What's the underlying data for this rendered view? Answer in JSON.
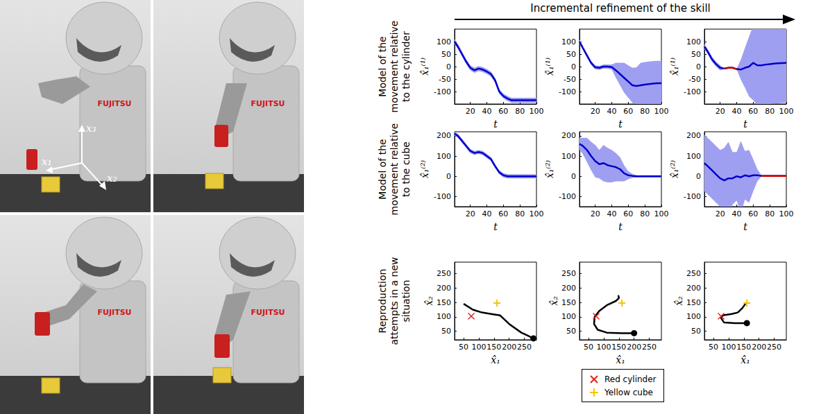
{
  "header": "Incremental refinement of the skill",
  "row_labels": [
    "Model of the movement relative to the cylinder",
    "Model of the movement relative to the cube",
    "Reproduction attempts in a new situation"
  ],
  "photos": {
    "brand": "FUJITSU",
    "axis_labels": [
      "x₁",
      "x₂",
      "x₃"
    ]
  },
  "legend_entries": [
    {
      "label": "Red cylinder",
      "marker": "x",
      "color": "#e0201b"
    },
    {
      "label": "Yellow cube",
      "marker": "plus",
      "color": "#f2c500"
    }
  ],
  "chart_data": [
    {
      "type": "line",
      "xlabel": "t",
      "ylabel": "x̂₁⁽¹⁾",
      "xlim": [
        1,
        100
      ],
      "xticks": [
        20,
        40,
        60,
        80,
        100
      ],
      "ylim": [
        -150,
        150
      ],
      "yticks": [
        -100,
        -50,
        0,
        50,
        100
      ],
      "x": [
        1,
        5,
        10,
        15,
        20,
        25,
        30,
        35,
        40,
        45,
        50,
        55,
        60,
        65,
        70,
        75,
        80,
        85,
        90,
        95,
        100
      ],
      "series": [
        {
          "color": "#0000cd",
          "values": [
            100,
            80,
            50,
            20,
            -5,
            -15,
            -8,
            -12,
            -20,
            -30,
            -55,
            -100,
            -118,
            -128,
            -135,
            -135,
            -135,
            -135,
            -135,
            -135,
            -135
          ],
          "lower": [
            90,
            70,
            40,
            10,
            -15,
            -25,
            -18,
            -22,
            -30,
            -40,
            -65,
            -110,
            -128,
            -138,
            -145,
            -145,
            -145,
            -145,
            -145,
            -145,
            -145
          ],
          "upper": [
            110,
            90,
            60,
            30,
            5,
            -5,
            2,
            -2,
            -10,
            -20,
            -45,
            -90,
            -108,
            -118,
            -125,
            -125,
            -125,
            -125,
            -125,
            -125,
            -125
          ]
        }
      ]
    },
    {
      "type": "line",
      "xlabel": "t",
      "ylabel": "x̂₁⁽¹⁾",
      "xlim": [
        1,
        100
      ],
      "xticks": [
        20,
        40,
        60,
        80,
        100
      ],
      "ylim": [
        -150,
        150
      ],
      "yticks": [
        -100,
        -50,
        0,
        50,
        100
      ],
      "x": [
        1,
        5,
        10,
        15,
        20,
        25,
        30,
        35,
        40,
        45,
        50,
        55,
        60,
        65,
        70,
        75,
        80,
        85,
        90,
        95,
        100
      ],
      "series": [
        {
          "color": "#0000cd",
          "values": [
            100,
            75,
            45,
            15,
            -3,
            -5,
            0,
            0,
            -2,
            -15,
            -30,
            -45,
            -60,
            -75,
            -78,
            -75,
            -72,
            -70,
            -68,
            -67,
            -67
          ],
          "lower": [
            92,
            67,
            37,
            7,
            -11,
            -13,
            -8,
            -8,
            -12,
            -45,
            -75,
            -105,
            -125,
            -145,
            -153,
            -165,
            -162,
            -160,
            -158,
            -157,
            -157
          ],
          "upper": [
            108,
            83,
            53,
            23,
            5,
            3,
            8,
            8,
            8,
            15,
            15,
            15,
            5,
            -5,
            -3,
            15,
            18,
            20,
            22,
            23,
            23
          ]
        }
      ]
    },
    {
      "type": "line",
      "xlabel": "t",
      "ylabel": "x̂₁⁽¹⁾",
      "xlim": [
        1,
        100
      ],
      "xticks": [
        20,
        40,
        60,
        80,
        100
      ],
      "ylim": [
        -150,
        150
      ],
      "yticks": [
        -100,
        -50,
        0,
        50,
        100
      ],
      "x": [
        1,
        5,
        10,
        15,
        20,
        25,
        30,
        35,
        40,
        45,
        50,
        55,
        60,
        65,
        70,
        75,
        80,
        85,
        90,
        95,
        100
      ],
      "series": [
        {
          "color": "#0000cd",
          "values": [
            80,
            60,
            30,
            10,
            -5,
            -8,
            -5,
            -5,
            -10,
            -12,
            -5,
            0,
            15,
            5,
            5,
            8,
            10,
            12,
            13,
            14,
            15
          ],
          "lower": [
            70,
            50,
            20,
            0,
            -15,
            -10,
            -7,
            -7,
            -12,
            -52,
            -85,
            -120,
            -135,
            -155,
            -155,
            -152,
            -150,
            -148,
            -147,
            -146,
            -145
          ],
          "upper": [
            90,
            70,
            40,
            20,
            5,
            -6,
            -3,
            -3,
            -8,
            28,
            75,
            120,
            165,
            165,
            165,
            168,
            170,
            172,
            173,
            174,
            175
          ]
        },
        {
          "color": "#cc0000",
          "values": [
            null,
            null,
            null,
            null,
            null,
            -8,
            -5,
            -5,
            -10,
            null,
            null,
            null,
            null,
            null,
            null,
            null,
            null,
            null,
            null,
            null,
            null
          ]
        }
      ]
    },
    {
      "type": "line",
      "xlabel": "t",
      "ylabel": "x̂₁⁽²⁾",
      "xlim": [
        1,
        100
      ],
      "xticks": [
        20,
        40,
        60,
        80,
        100
      ],
      "ylim": [
        -150,
        220
      ],
      "yticks": [
        -100,
        0,
        100,
        200
      ],
      "x": [
        1,
        5,
        10,
        15,
        20,
        25,
        30,
        35,
        40,
        45,
        50,
        55,
        60,
        65,
        70,
        75,
        80,
        85,
        90,
        95,
        100
      ],
      "series": [
        {
          "color": "#0000cd",
          "values": [
            210,
            200,
            175,
            150,
            125,
            115,
            120,
            115,
            100,
            85,
            50,
            20,
            5,
            0,
            0,
            0,
            0,
            0,
            0,
            0,
            0
          ],
          "lower": [
            200,
            190,
            165,
            140,
            115,
            105,
            110,
            105,
            90,
            75,
            40,
            10,
            -5,
            -10,
            -10,
            -10,
            -10,
            -10,
            -10,
            -10,
            -10
          ],
          "upper": [
            220,
            210,
            185,
            160,
            135,
            125,
            130,
            125,
            110,
            95,
            60,
            30,
            15,
            10,
            10,
            10,
            10,
            10,
            10,
            10,
            10
          ]
        }
      ]
    },
    {
      "type": "line",
      "xlabel": "t",
      "ylabel": "x̂₁⁽²⁾",
      "xlim": [
        1,
        100
      ],
      "xticks": [
        20,
        40,
        60,
        80,
        100
      ],
      "ylim": [
        -150,
        220
      ],
      "yticks": [
        -100,
        0,
        100,
        200
      ],
      "x": [
        1,
        5,
        10,
        15,
        20,
        25,
        30,
        35,
        40,
        45,
        50,
        55,
        60,
        65,
        70,
        75,
        80,
        85,
        90,
        95,
        100
      ],
      "series": [
        {
          "color": "#0000cd",
          "values": [
            160,
            150,
            130,
            100,
            75,
            60,
            65,
            55,
            50,
            45,
            35,
            15,
            5,
            2,
            0,
            0,
            0,
            0,
            0,
            0,
            0
          ],
          "lower": [
            130,
            110,
            70,
            30,
            -5,
            -10,
            -25,
            -30,
            -30,
            -25,
            -25,
            -25,
            -15,
            -8,
            -5,
            -5,
            -5,
            -5,
            -5,
            -5,
            -5
          ],
          "upper": [
            190,
            190,
            190,
            170,
            155,
            130,
            155,
            140,
            130,
            115,
            95,
            55,
            25,
            12,
            5,
            5,
            5,
            5,
            5,
            5,
            5
          ]
        }
      ]
    },
    {
      "type": "line",
      "xlabel": "t",
      "ylabel": "x̂₁⁽²⁾",
      "xlim": [
        1,
        100
      ],
      "xticks": [
        20,
        40,
        60,
        80,
        100
      ],
      "ylim": [
        -150,
        220
      ],
      "yticks": [
        -100,
        0,
        100,
        200
      ],
      "x": [
        1,
        5,
        10,
        15,
        20,
        25,
        30,
        35,
        40,
        45,
        50,
        55,
        60,
        65,
        70,
        75,
        80,
        85,
        90,
        95,
        100
      ],
      "series": [
        {
          "color": "#0000cd",
          "values": [
            65,
            50,
            30,
            10,
            -10,
            -20,
            -10,
            -10,
            0,
            -5,
            5,
            0,
            5,
            5,
            2,
            2,
            2,
            2,
            2,
            2,
            2
          ],
          "lower": [
            -75,
            -90,
            -110,
            -130,
            -150,
            -160,
            -190,
            -140,
            -120,
            -185,
            -115,
            -130,
            -75,
            -25,
            -1,
            -1,
            -1,
            -1,
            -1,
            -1,
            -1
          ],
          "upper": [
            205,
            190,
            170,
            150,
            130,
            140,
            170,
            120,
            120,
            175,
            125,
            130,
            85,
            35,
            5,
            5,
            5,
            5,
            5,
            5,
            5
          ]
        },
        {
          "color": "#cc0000",
          "values": [
            null,
            null,
            null,
            null,
            null,
            null,
            null,
            null,
            null,
            null,
            null,
            null,
            null,
            null,
            2,
            2,
            2,
            2,
            2,
            2,
            2
          ]
        }
      ]
    },
    {
      "type": "line",
      "xlabel": "x̂₁",
      "ylabel": "x̂₂",
      "xlim": [
        20,
        290
      ],
      "xticks": [
        50,
        100,
        150,
        200,
        250
      ],
      "ylim": [
        20,
        290
      ],
      "yticks": [
        50,
        100,
        150,
        200,
        250
      ],
      "series": [
        {
          "color": "#000000",
          "x": [
            280,
            240,
            200,
            170,
            140,
            110,
            80,
            50
          ],
          "values": [
            25,
            45,
            75,
            105,
            110,
            115,
            125,
            145
          ]
        }
      ],
      "points": [
        {
          "marker": "x",
          "color": "#e0201b",
          "x": 75,
          "y": 102
        },
        {
          "marker": "plus",
          "color": "#f2c500",
          "x": 160,
          "y": 148
        },
        {
          "marker": "circle",
          "color": "#000000",
          "x": 280,
          "y": 25
        }
      ]
    },
    {
      "type": "line",
      "xlabel": "x̂₁",
      "ylabel": "x̂₂",
      "xlim": [
        20,
        290
      ],
      "xticks": [
        50,
        100,
        150,
        200,
        250
      ],
      "ylim": [
        20,
        290
      ],
      "yticks": [
        50,
        100,
        150,
        200,
        250
      ],
      "series": [
        {
          "color": "#000000",
          "x": [
            200,
            160,
            110,
            80,
            68,
            70,
            85,
            110,
            140,
            150,
            148
          ],
          "values": [
            43,
            43,
            45,
            55,
            75,
            100,
            120,
            140,
            155,
            165,
            175
          ]
        }
      ],
      "points": [
        {
          "marker": "x",
          "color": "#e0201b",
          "x": 75,
          "y": 102
        },
        {
          "marker": "plus",
          "color": "#f2c500",
          "x": 160,
          "y": 148
        },
        {
          "marker": "circle",
          "color": "#000000",
          "x": 200,
          "y": 43
        }
      ]
    },
    {
      "type": "line",
      "xlabel": "x̂₁",
      "ylabel": "x̂₂",
      "xlim": [
        20,
        290
      ],
      "xticks": [
        50,
        100,
        150,
        200,
        250
      ],
      "ylim": [
        20,
        290
      ],
      "yticks": [
        50,
        100,
        150,
        200,
        250
      ],
      "series": [
        {
          "color": "#000000",
          "x": [
            160,
            120,
            85,
            75,
            80,
            110,
            130,
            145,
            155
          ],
          "values": [
            78,
            78,
            80,
            95,
            105,
            110,
            115,
            130,
            145
          ]
        }
      ],
      "points": [
        {
          "marker": "x",
          "color": "#e0201b",
          "x": 75,
          "y": 102
        },
        {
          "marker": "plus",
          "color": "#f2c500",
          "x": 160,
          "y": 148
        },
        {
          "marker": "circle",
          "color": "#000000",
          "x": 160,
          "y": 78
        }
      ]
    }
  ]
}
